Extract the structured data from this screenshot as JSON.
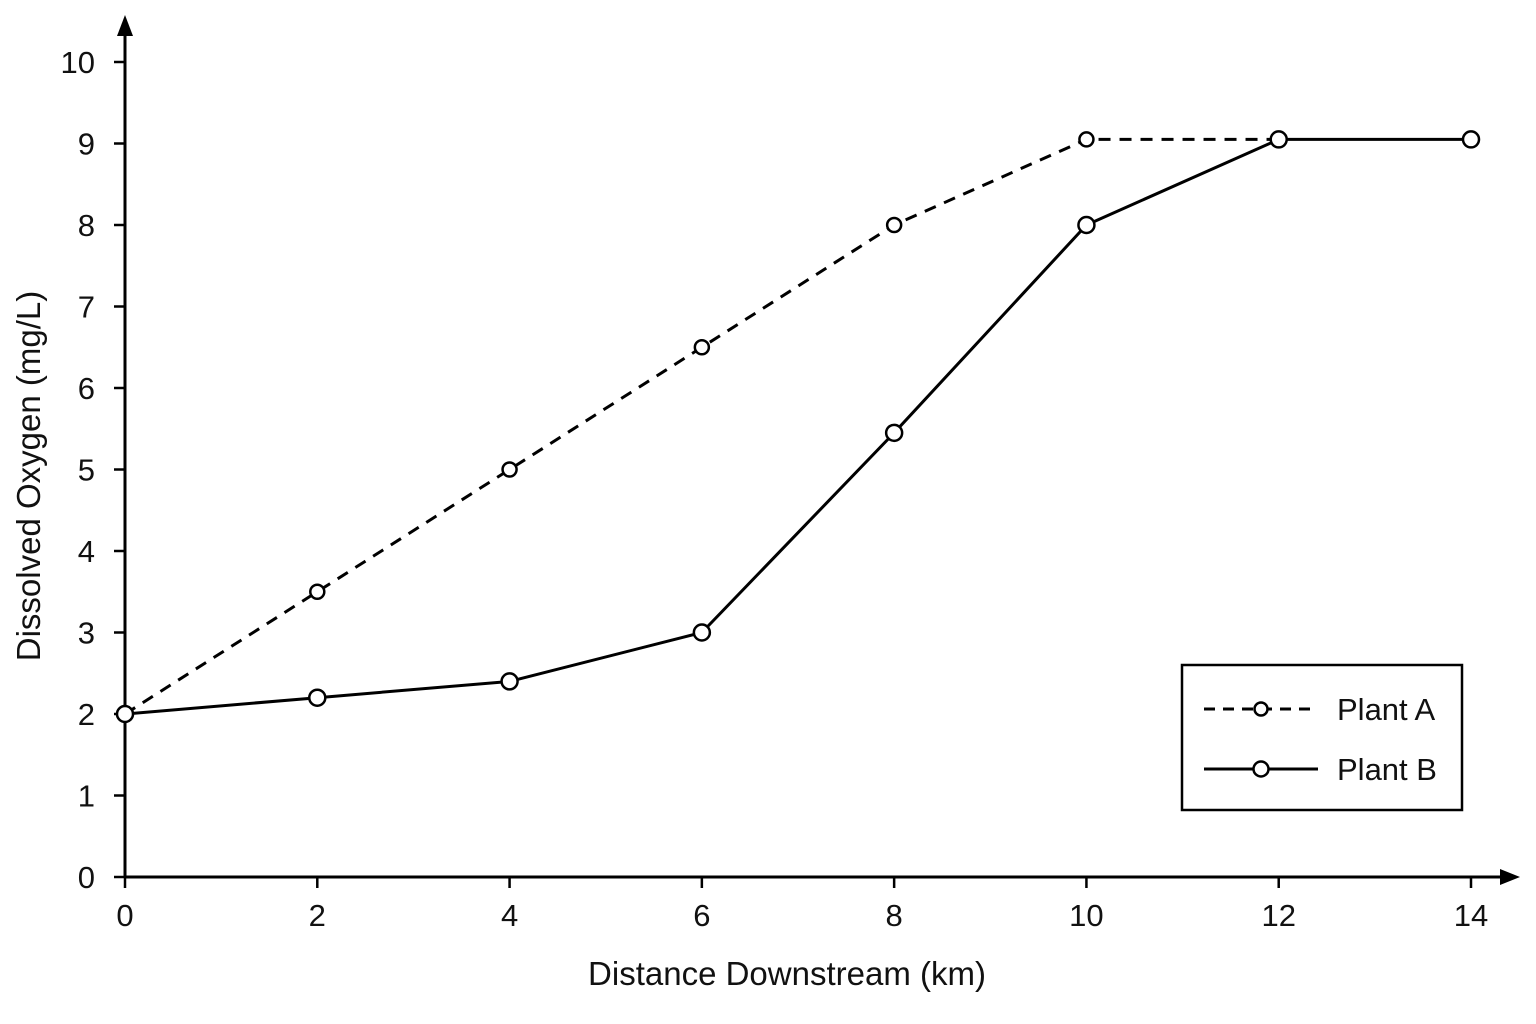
{
  "chart_data": {
    "type": "line",
    "title": "",
    "xlabel": "Distance Downstream (km)",
    "ylabel": "Dissolved Oxygen (mg/L)",
    "xlim": [
      0,
      14
    ],
    "ylim": [
      0,
      10
    ],
    "x_ticks": [
      "0",
      "2",
      "4",
      "6",
      "8",
      "10",
      "12",
      "14"
    ],
    "y_ticks": [
      "0",
      "1",
      "2",
      "3",
      "4",
      "5",
      "6",
      "7",
      "8",
      "9",
      "10"
    ],
    "grid": false,
    "legend_position": "bottom-right",
    "series": [
      {
        "name": "Plant A",
        "style": "dashed",
        "x": [
          0,
          2,
          4,
          6,
          8,
          10,
          12
        ],
        "y": [
          2.0,
          3.5,
          5.0,
          6.5,
          8.0,
          9.05,
          9.05
        ]
      },
      {
        "name": "Plant B",
        "style": "solid",
        "x": [
          0,
          2,
          4,
          6,
          8,
          10,
          12,
          14
        ],
        "y": [
          2.0,
          2.2,
          2.4,
          3.0,
          5.45,
          8.0,
          9.05,
          9.05
        ]
      }
    ]
  }
}
